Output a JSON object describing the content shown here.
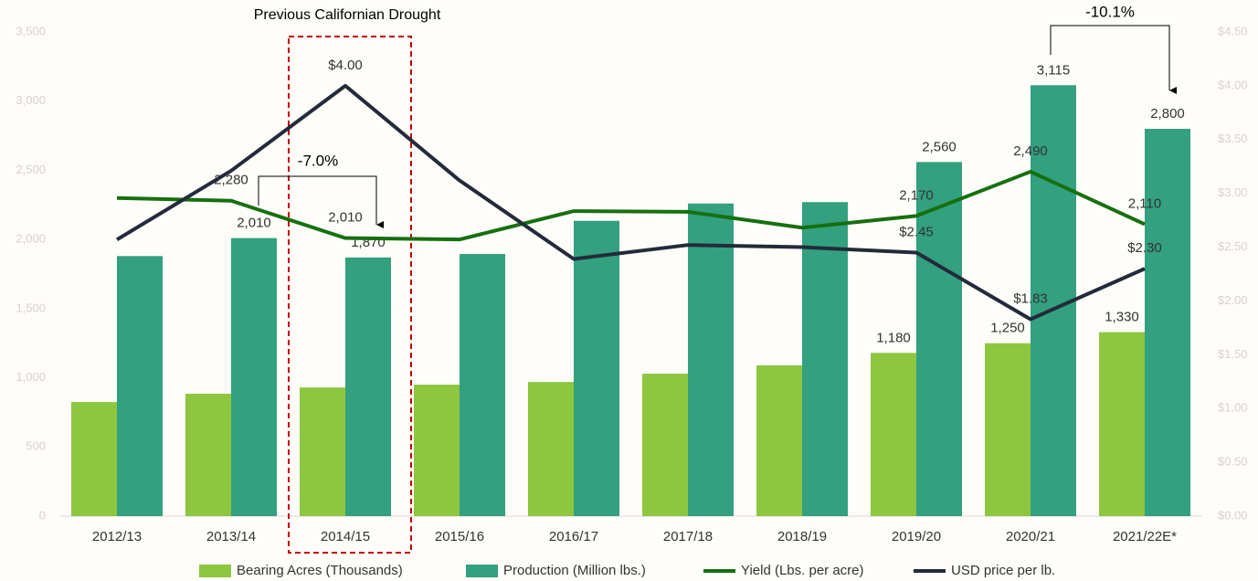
{
  "chart_data": {
    "type": "bar",
    "annotations": [
      "Previous Californian Drought",
      "-7.0%",
      "-10.1%"
    ],
    "categories": [
      "2012/13",
      "2013/14",
      "2014/15",
      "2015/16",
      "2016/17",
      "2017/18",
      "2018/19",
      "2019/20",
      "2020/21",
      "2021/22E*"
    ],
    "series": [
      {
        "name": "Bearing Acres (Thousands)",
        "type": "bar",
        "color": "#8dc63f",
        "values": [
          825,
          885,
          930,
          950,
          970,
          1030,
          1090,
          1180,
          1250,
          1330
        ],
        "value_labels": [
          null,
          null,
          null,
          null,
          null,
          null,
          null,
          "1,180",
          "1,250",
          "1,330"
        ]
      },
      {
        "name": "Production (Million lbs.)",
        "type": "bar",
        "color": "#33a07f",
        "values": [
          1880,
          2010,
          1870,
          1895,
          2135,
          2260,
          2270,
          2560,
          3115,
          2800
        ],
        "value_labels": [
          null,
          "2,010",
          "1,870",
          null,
          null,
          null,
          null,
          "2,560",
          "3,115",
          "2,800"
        ]
      },
      {
        "name": "Yield (Lbs. per acre)",
        "type": "line",
        "color": "#16700f",
        "values": [
          2300,
          2280,
          2010,
          2000,
          2205,
          2200,
          2085,
          2170,
          2490,
          2110
        ],
        "value_labels": [
          null,
          "2,280",
          "2,010",
          null,
          null,
          null,
          null,
          "2,170",
          "2,490",
          "2,110"
        ]
      },
      {
        "name": "USD price per lb.",
        "type": "line",
        "color": "#232b3a",
        "axis": "y2",
        "values": [
          2.57,
          3.21,
          4.0,
          3.12,
          2.39,
          2.52,
          2.5,
          2.45,
          1.83,
          2.3
        ],
        "value_labels": [
          null,
          null,
          "$4.00",
          null,
          null,
          null,
          null,
          "$2.45",
          "$1.83",
          "$2.30"
        ]
      }
    ],
    "ylim": [
      0,
      3500
    ],
    "yticks": [
      0,
      500,
      {
        "value": 1000,
        "label": "1,000"
      },
      {
        "value": 1500,
        "label": "1,500"
      },
      {
        "value": 2000,
        "label": "2,000"
      },
      {
        "value": 2500,
        "label": "2,500"
      },
      {
        "value": 3000,
        "label": "3,000"
      },
      {
        "value": 3500,
        "label": "3,500"
      }
    ],
    "y2lim": [
      0,
      4.5
    ],
    "y2ticks": [
      {
        "value": 0,
        "label": "$0.00"
      },
      {
        "value": 0.5,
        "label": "$0.50"
      },
      {
        "value": 1,
        "label": "$1.00"
      },
      {
        "value": 1.5,
        "label": "$1.50"
      },
      {
        "value": 2,
        "label": "$2.00"
      },
      {
        "value": 2.5,
        "label": "$2.50"
      },
      {
        "value": 3,
        "label": "$3.00"
      },
      {
        "value": 3.5,
        "label": "$3.50"
      },
      {
        "value": 4,
        "label": "$4.00"
      },
      {
        "value": 4.5,
        "label": "$4.50"
      }
    ],
    "legend": "bottom"
  }
}
